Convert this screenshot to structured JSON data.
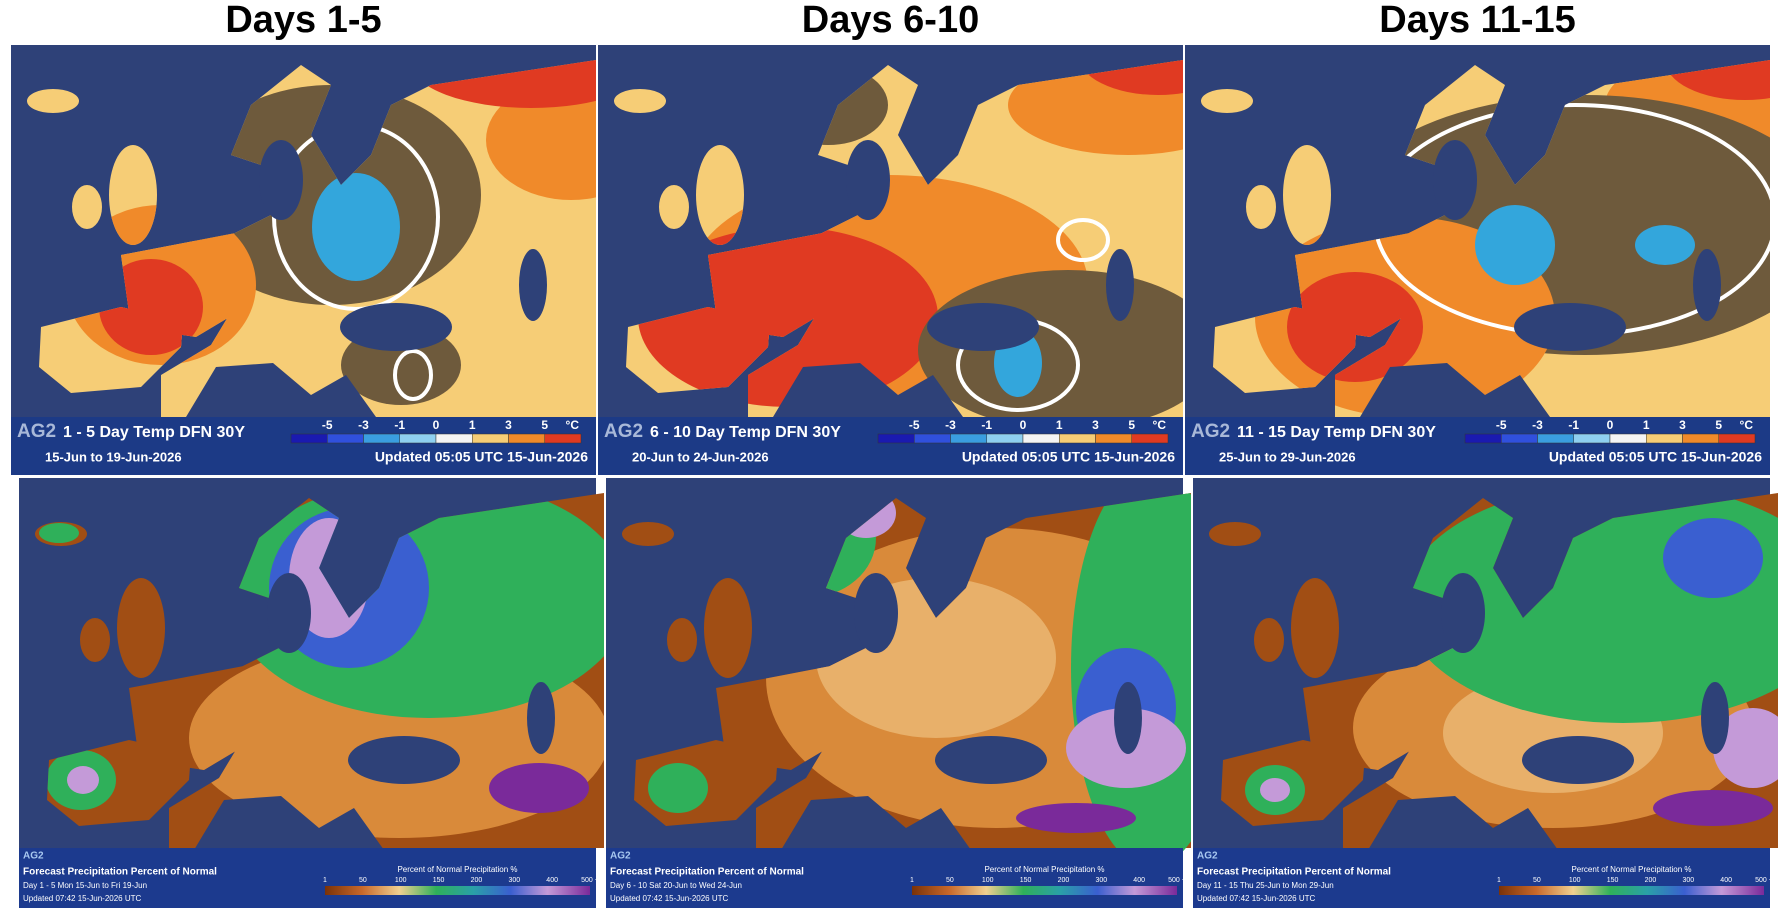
{
  "panels": [
    {
      "title": "Days 1-5",
      "temp": {
        "logo": "AG2",
        "title": "1 - 5 Day Temp DFN 30Y",
        "dates": "15-Jun to 19-Jun-2026",
        "updated": "Updated 05:05 UTC 15-Jun-2026"
      },
      "precip": {
        "logo": "AG2",
        "title": "Forecast Precipitation Percent of Normal",
        "period": "Day 1 - 5  Mon 15-Jun to Fri 19-Jun",
        "updated": "Updated 07:42 15-Jun-2026 UTC"
      }
    },
    {
      "title": "Days 6-10",
      "temp": {
        "logo": "AG2",
        "title": "6 - 10 Day Temp DFN 30Y",
        "dates": "20-Jun to 24-Jun-2026",
        "updated": "Updated 05:05 UTC 15-Jun-2026"
      },
      "precip": {
        "logo": "AG2",
        "title": "Forecast Precipitation Percent of Normal",
        "period": "Day 6 - 10  Sat 20-Jun to Wed 24-Jun",
        "updated": "Updated 07:42 15-Jun-2026 UTC"
      }
    },
    {
      "title": "Days 11-15",
      "temp": {
        "logo": "AG2",
        "title": "11 - 15 Day Temp DFN 30Y",
        "dates": "25-Jun to 29-Jun-2026",
        "updated": "Updated 05:05 UTC 15-Jun-2026"
      },
      "precip": {
        "logo": "AG2",
        "title": "Forecast Precipitation Percent of Normal",
        "period": "Day 11 - 15  Thu 25-Jun to Mon 29-Jun",
        "updated": "Updated 07:42 15-Jun-2026 UTC"
      }
    }
  ],
  "temp_legend": {
    "ticks": [
      "-5",
      "-3",
      "-1",
      "0",
      "1",
      "3",
      "5"
    ],
    "unit": "°C"
  },
  "precip_legend": {
    "title": "Percent of Normal Precipitation  %",
    "ticks": [
      "1",
      "50",
      "100",
      "150",
      "200",
      "300",
      "400",
      "500 +"
    ]
  }
}
